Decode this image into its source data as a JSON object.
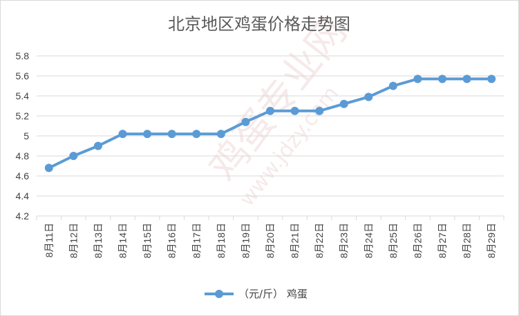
{
  "chart_data": {
    "type": "line",
    "title": "北京地区鸡蛋价格走势图",
    "categories": [
      "8月11日",
      "8月12日",
      "8月13日",
      "8月14日",
      "8月15日",
      "8月16日",
      "8月17日",
      "8月18日",
      "8月19日",
      "8月20日",
      "8月21日",
      "8月22日",
      "8月23日",
      "8月24日",
      "8月25日",
      "8月26日",
      "8月27日",
      "8月28日",
      "8月29日"
    ],
    "series": [
      {
        "name": "（元/斤）  鸡蛋",
        "values": [
          4.68,
          4.8,
          4.9,
          5.02,
          5.02,
          5.02,
          5.02,
          5.02,
          5.14,
          5.25,
          5.25,
          5.25,
          5.32,
          5.39,
          5.5,
          5.57,
          5.57,
          5.57,
          5.57
        ],
        "color": "#5b9bd5"
      }
    ],
    "ylim": [
      4.2,
      5.8
    ],
    "yticks": [
      "4.2",
      "4.4",
      "4.6",
      "4.8",
      "5",
      "5.2",
      "5.4",
      "5.6",
      "5.8"
    ],
    "grid": true,
    "legend_position": "bottom"
  },
  "watermark": {
    "text1": "鸡蛋专业网",
    "text2": "www.jdzy.com",
    "color": "#e8c3c3"
  }
}
